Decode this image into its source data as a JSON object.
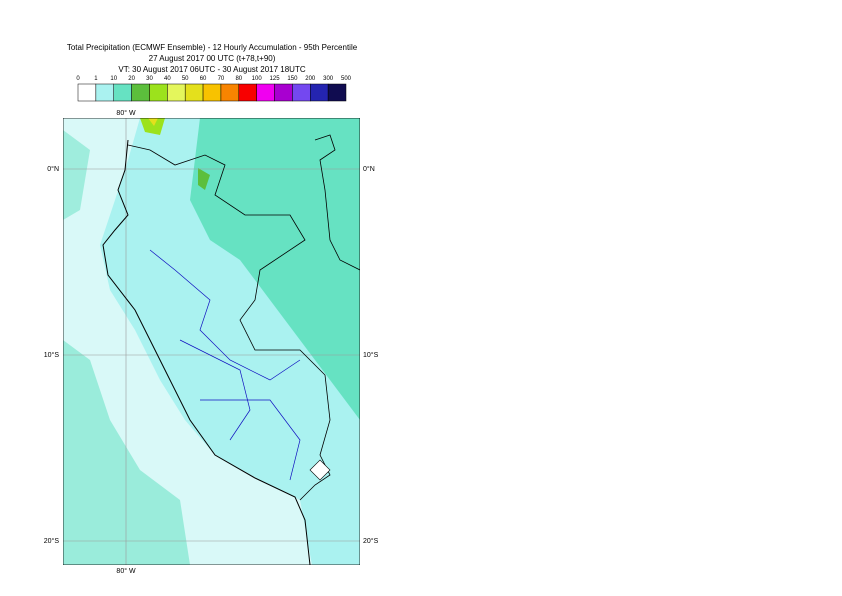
{
  "header": {
    "title": "Total Precipitation (ECMWF Ensemble) - 12 Hourly Accumulation - 95th Percentile",
    "line2": "27 August 2017 00 UTC (t+78,t+90)",
    "line3": "VT: 30 August 2017 06UTC - 30 August 2017 18UTC"
  },
  "legend": {
    "labels": [
      "0",
      "1",
      "10",
      "20",
      "30",
      "40",
      "50",
      "60",
      "70",
      "80",
      "100",
      "125",
      "150",
      "200",
      "300",
      "500"
    ],
    "colors": [
      "#ffffff",
      "#aaf2f0",
      "#66e2c2",
      "#5cbf3c",
      "#9ce21c",
      "#e4f65c",
      "#e4e01c",
      "#f8c200",
      "#f88400",
      "#f80000",
      "#f000f0",
      "#a800d0",
      "#7448f0",
      "#2424b0",
      "#100c50"
    ]
  },
  "map": {
    "lon_labels": [
      "80° W",
      "80° W"
    ],
    "lat_labels": [
      "0°N",
      "0°N",
      "10°S",
      "10°S",
      "20°S",
      "20°S"
    ]
  }
}
